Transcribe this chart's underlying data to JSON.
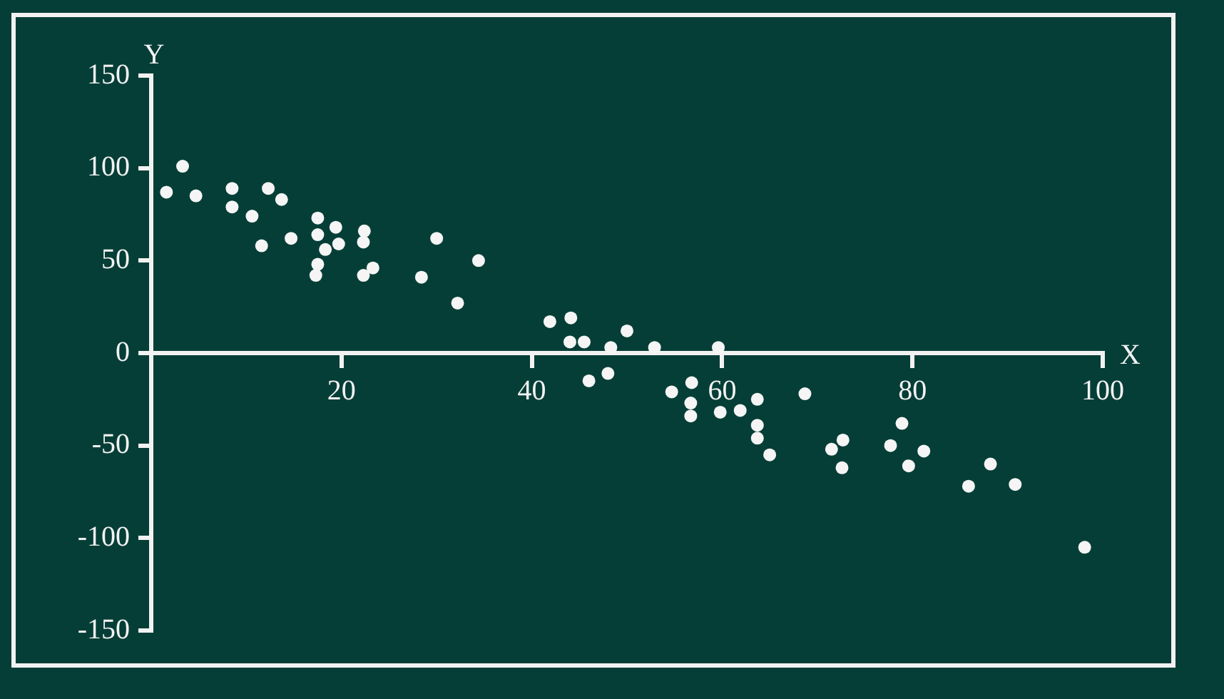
{
  "chart_data": {
    "type": "scatter",
    "xlabel": "X",
    "ylabel": "Y",
    "x": [
      1.6,
      3.3,
      4.7,
      8.5,
      8.5,
      12.3,
      13.7,
      10.6,
      17.5,
      19.4,
      17.5,
      22.4,
      19.7,
      18.3,
      22.3,
      11.6,
      14.7,
      30.0,
      34.4,
      17.5,
      17.3,
      23.3,
      22.3,
      28.4,
      32.2,
      41.9,
      44.1,
      44.0,
      45.5,
      50.0,
      48.3,
      52.9,
      59.6,
      46.0,
      48.0,
      54.7,
      56.8,
      56.7,
      56.7,
      59.8,
      61.9,
      63.7,
      63.7,
      63.7,
      65.0,
      68.7,
      78.9,
      72.7,
      71.5,
      72.6,
      77.7,
      81.2,
      79.6,
      88.2,
      85.9,
      90.8,
      98.1
    ],
    "values": [
      87,
      101,
      85,
      89,
      79,
      89,
      83,
      74,
      73,
      68,
      64,
      66,
      59,
      56,
      60,
      58,
      62,
      62,
      50,
      48,
      42,
      46,
      42,
      41,
      27,
      17,
      19,
      6,
      6,
      12,
      3,
      3,
      3,
      -15,
      -11,
      -21,
      -16,
      -27,
      -34,
      -32,
      -31,
      -25,
      -39,
      -46,
      -55,
      -22,
      -38,
      -47,
      -52,
      -62,
      -50,
      -53,
      -61,
      -60,
      -72,
      -71,
      -105
    ],
    "color": "#f5f5f5",
    "marker": "circle",
    "xlim": [
      0,
      100
    ],
    "ylim": [
      -150,
      150
    ],
    "xticks": [
      20,
      40,
      60,
      80,
      100
    ],
    "yticks": [
      -150,
      -100,
      -50,
      0,
      50,
      100,
      150
    ]
  }
}
